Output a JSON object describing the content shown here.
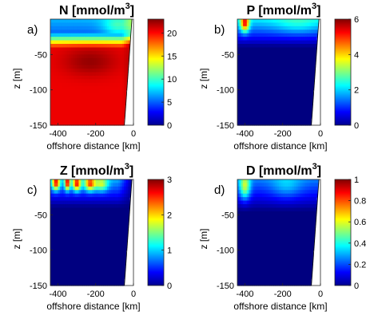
{
  "chart_data": [
    {
      "type": "heatmap",
      "letter": "a)",
      "title_main": "N [mmol/m",
      "title_sup": "3",
      "title_end": "]",
      "xlabel": "offshore distance [km]",
      "ylabel": "z [m]",
      "xlim": [
        -440,
        0
      ],
      "ylim": [
        -150,
        0
      ],
      "xticks": [
        "-400",
        "-200",
        "0"
      ],
      "xtick_values": [
        -400,
        -200,
        0
      ],
      "yticks": [
        "-50",
        "-100",
        "-150"
      ],
      "ytick_values": [
        -50,
        -100,
        -150
      ],
      "clim": [
        0,
        23
      ],
      "cbar_ticks": [
        "0",
        "5",
        "10",
        "15",
        "20"
      ],
      "cbar_tick_values": [
        0,
        5,
        10,
        15,
        20
      ],
      "field": "N"
    },
    {
      "type": "heatmap",
      "letter": "b)",
      "title_main": "P [mmol/m",
      "title_sup": "3",
      "title_end": "]",
      "xlabel": "offshore distance [km]",
      "ylabel": "z [m]",
      "xlim": [
        -440,
        0
      ],
      "ylim": [
        -150,
        0
      ],
      "xticks": [
        "-400",
        "-200",
        "0"
      ],
      "xtick_values": [
        -400,
        -200,
        0
      ],
      "yticks": [
        "-50",
        "-100",
        "-150"
      ],
      "ytick_values": [
        -50,
        -100,
        -150
      ],
      "clim": [
        0,
        6
      ],
      "cbar_ticks": [
        "0",
        "2",
        "4",
        "6"
      ],
      "cbar_tick_values": [
        0,
        2,
        4,
        6
      ],
      "field": "P"
    },
    {
      "type": "heatmap",
      "letter": "c)",
      "title_main": "Z [mmol/m",
      "title_sup": "3",
      "title_end": "]",
      "xlabel": "offshore distance [km]",
      "ylabel": "z [m]",
      "xlim": [
        -440,
        0
      ],
      "ylim": [
        -150,
        0
      ],
      "xticks": [
        "-400",
        "-200",
        "0"
      ],
      "xtick_values": [
        -400,
        -200,
        0
      ],
      "yticks": [
        "-50",
        "-100",
        "-150"
      ],
      "ytick_values": [
        -50,
        -100,
        -150
      ],
      "clim": [
        0,
        3
      ],
      "cbar_ticks": [
        "0",
        "1",
        "2",
        "3"
      ],
      "cbar_tick_values": [
        0,
        1,
        2,
        3
      ],
      "field": "Z"
    },
    {
      "type": "heatmap",
      "letter": "d)",
      "title_main": "D [mmol/m",
      "title_sup": "3",
      "title_end": "]",
      "xlabel": "offshore distance [km]",
      "ylabel": "z [m]",
      "xlim": [
        -440,
        0
      ],
      "ylim": [
        -150,
        0
      ],
      "xticks": [
        "-400",
        "-200",
        "0"
      ],
      "xtick_values": [
        -400,
        -200,
        0
      ],
      "yticks": [
        "-50",
        "-100",
        "-150"
      ],
      "ytick_values": [
        -50,
        -100,
        -150
      ],
      "clim": [
        0,
        1
      ],
      "cbar_ticks": [
        "0",
        "0.2",
        "0.4",
        "0.6",
        "0.8",
        "1"
      ],
      "cbar_tick_values": [
        0,
        0.2,
        0.4,
        0.6,
        0.8,
        1
      ],
      "field": "D"
    }
  ]
}
